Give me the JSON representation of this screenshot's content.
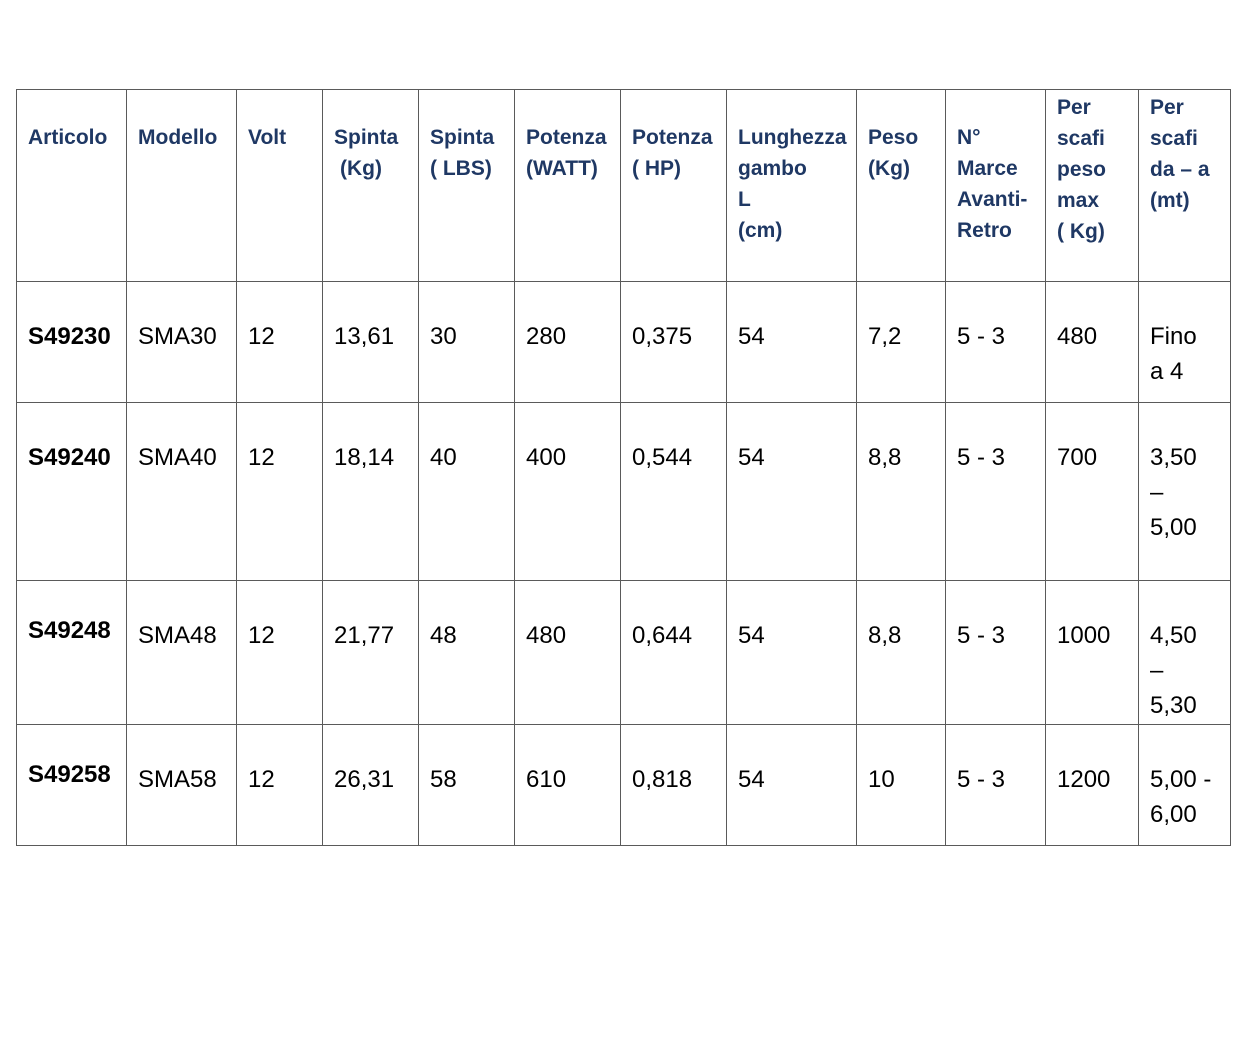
{
  "table": {
    "headers": [
      [
        "Articolo"
      ],
      [
        "Modello"
      ],
      [
        "Volt"
      ],
      [
        "Spinta",
        "(Kg)"
      ],
      [
        "Spinta",
        "( LBS)"
      ],
      [
        "Potenza",
        "(WATT)"
      ],
      [
        "Potenza",
        "( HP)"
      ],
      [
        "Lunghezza",
        "gambo",
        "L",
        "(cm)"
      ],
      [
        "Peso",
        "(Kg)"
      ],
      [
        "N°",
        "Marce",
        "Avanti-",
        "Retro"
      ],
      [
        "Per",
        "scafi",
        "peso",
        "max",
        "( Kg)"
      ],
      [
        "Per",
        "scafi",
        "da – a",
        "(mt)"
      ]
    ],
    "rows": [
      {
        "articolo": "S49230",
        "modello": "SMA30",
        "volt": "12",
        "spinta_kg": "13,61",
        "spinta_lbs": "30",
        "potenza_watt": "280",
        "potenza_hp": "0,375",
        "lunghezza_gambo_cm": "54",
        "peso_kg": "7,2",
        "marce": "5 - 3",
        "peso_max_kg": "480",
        "scafi_mt": [
          "Fino",
          "a 4"
        ]
      },
      {
        "articolo": "S49240",
        "modello": "SMA40",
        "volt": "12",
        "spinta_kg": "18,14",
        "spinta_lbs": "40",
        "potenza_watt": "400",
        "potenza_hp": "0,544",
        "lunghezza_gambo_cm": "54",
        "peso_kg": "8,8",
        "marce": "5 - 3",
        "peso_max_kg": "700",
        "scafi_mt": [
          "3,50",
          "–",
          "5,00"
        ]
      },
      {
        "articolo": "S49248",
        "modello": "SMA48",
        "volt": "12",
        "spinta_kg": "21,77",
        "spinta_lbs": "48",
        "potenza_watt": "480",
        "potenza_hp": "0,644",
        "lunghezza_gambo_cm": "54",
        "peso_kg": "8,8",
        "marce": "5 - 3",
        "peso_max_kg": "1000",
        "scafi_mt": [
          "4,50",
          "–",
          "5,30"
        ]
      },
      {
        "articolo": "S49258",
        "modello": "SMA58",
        "volt": "12",
        "spinta_kg": "26,31",
        "spinta_lbs": "58",
        "potenza_watt": "610",
        "potenza_hp": "0,818",
        "lunghezza_gambo_cm": "54",
        "peso_kg": "10",
        "marce": "5 - 3",
        "peso_max_kg": "1200",
        "scafi_mt": [
          "5,00 -",
          "6,00"
        ]
      }
    ]
  }
}
